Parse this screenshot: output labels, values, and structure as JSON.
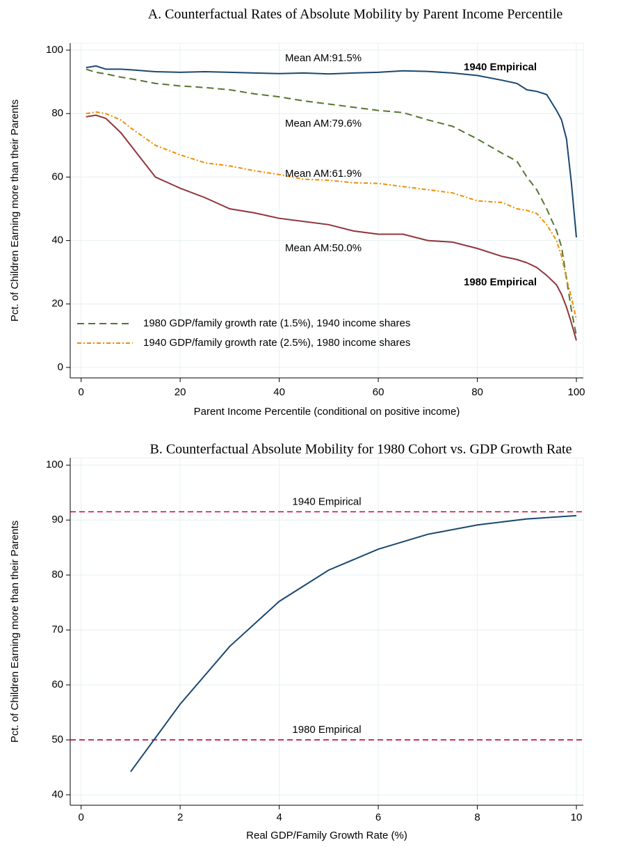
{
  "chart_data": [
    {
      "type": "line",
      "title": "A. Counterfactual Rates of Absolute Mobility by Parent Income Percentile",
      "xlabel": "Parent Income Percentile (conditional on positive income)",
      "ylabel": "Pct. of Children Earning more than their Parents",
      "x": [
        1,
        3,
        5,
        8,
        10,
        15,
        20,
        25,
        30,
        35,
        40,
        45,
        50,
        55,
        60,
        65,
        70,
        75,
        80,
        85,
        88,
        90,
        92,
        94,
        96,
        97,
        98,
        99,
        100
      ],
      "xlim": [
        -2.2,
        101.4
      ],
      "xticks": [
        0,
        20,
        40,
        60,
        80,
        100
      ],
      "ylim": [
        -3.3,
        102.2
      ],
      "yticks": [
        0,
        20,
        40,
        60,
        80,
        100
      ],
      "grid": true,
      "legend_position": "lower left",
      "series": [
        {
          "name": "1940 Empirical",
          "color": "#1a476f",
          "style": "solid",
          "annotation": "Mean AM:91.5%",
          "values": [
            94.5,
            95,
            94,
            94,
            93.8,
            93.2,
            93,
            93.2,
            93,
            92.8,
            92.6,
            92.8,
            92.5,
            92.8,
            93,
            93.5,
            93.3,
            92.8,
            92,
            90.5,
            89.5,
            87.5,
            87,
            86,
            81,
            78,
            72,
            58,
            41
          ]
        },
        {
          "name": "1980 GDP/family growth rate (1.5%), 1940 income shares",
          "color": "#55752f",
          "style": "dash",
          "annotation": "Mean AM:79.6%",
          "values": [
            94,
            93,
            92.5,
            91.5,
            91,
            89.5,
            88.7,
            88.2,
            87.5,
            86.2,
            85.3,
            84,
            83,
            82,
            81,
            80.3,
            78,
            76,
            72,
            67.5,
            65,
            60,
            56,
            50,
            43,
            38,
            28,
            18,
            10
          ]
        },
        {
          "name": "1940 GDP/family growth rate (2.5%), 1980 income shares",
          "color": "#f28c00",
          "style": "dashdot",
          "annotation": "Mean AM:61.9%",
          "values": [
            80,
            80.5,
            80,
            78,
            75.5,
            70,
            67,
            64.5,
            63.5,
            62,
            60.8,
            59.3,
            59,
            58.2,
            58,
            57,
            56,
            55,
            52.5,
            52,
            50,
            49.5,
            48.5,
            45,
            40,
            35,
            28,
            22,
            15
          ]
        },
        {
          "name": "1980 Empirical",
          "color": "#90353b",
          "style": "solid",
          "annotation": "Mean AM:50.0%",
          "values": [
            79,
            79.5,
            78.5,
            74,
            70,
            60,
            56.5,
            53.5,
            50,
            48.7,
            47,
            46,
            45,
            43,
            42,
            42,
            40,
            39.5,
            37.5,
            35,
            34,
            33,
            31.5,
            29,
            26,
            23,
            19,
            14,
            8.5
          ]
        }
      ]
    },
    {
      "type": "line",
      "title": "B. Counterfactual Absolute Mobility for 1980 Cohort vs. GDP Growth Rate",
      "xlabel": "Real GDP/Family Growth Rate (%)",
      "ylabel": "Pct. of Children Earning more than their Parents",
      "x": [
        1,
        2,
        3,
        4,
        5,
        6,
        7,
        8,
        9,
        10
      ],
      "xlim": [
        -0.22,
        10.14
      ],
      "xticks": [
        0,
        2,
        4,
        6,
        8,
        10
      ],
      "ylim": [
        38.1,
        101.3
      ],
      "yticks": [
        40,
        50,
        60,
        70,
        80,
        90,
        100
      ],
      "grid": true,
      "series": [
        {
          "color": "#1a476f",
          "style": "solid",
          "values": [
            44.2,
            56.5,
            67,
            75.2,
            80.9,
            84.7,
            87.4,
            89.1,
            90.2,
            90.8
          ]
        }
      ],
      "hlines": [
        {
          "value": 91.5,
          "label": "1940 Empirical",
          "color": "#c10534"
        },
        {
          "value": 50.0,
          "label": "1980 Empirical",
          "color": "#c10534"
        }
      ]
    }
  ]
}
